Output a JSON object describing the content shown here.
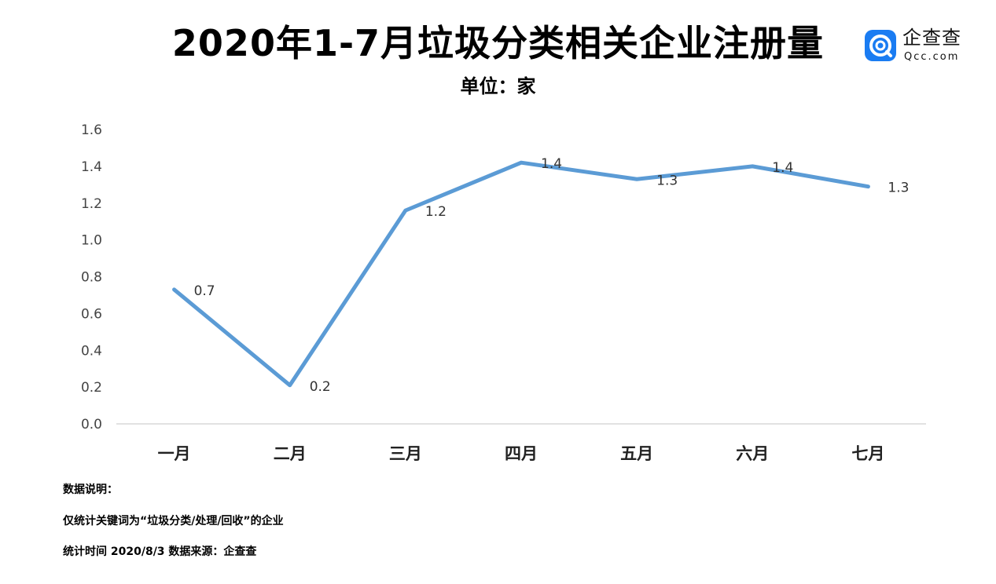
{
  "header": {
    "title": "2020年1-7月垃圾分类相关企业注册量",
    "unit": "单位：家"
  },
  "logo": {
    "name": "企查查",
    "domain": "Qcc.com",
    "brand_color": "#1a7cf2",
    "icon": "qcc-logo-icon"
  },
  "chart_data": {
    "type": "line",
    "title": "2020年1-7月垃圾分类相关企业注册量",
    "subtitle": "单位：家",
    "categories": [
      "一月",
      "二月",
      "三月",
      "四月",
      "五月",
      "六月",
      "七月"
    ],
    "series": [
      {
        "values": [
          0.73,
          0.21,
          1.16,
          1.42,
          1.33,
          1.4,
          1.29
        ],
        "data_labels": [
          "0.7",
          "0.2",
          "1.2",
          "1.4",
          "1.3",
          "1.4",
          "1.3"
        ],
        "color": "#5b9bd5"
      }
    ],
    "ylim": [
      0,
      1.6
    ],
    "yticks": [
      "0.0",
      "0.2",
      "0.4",
      "0.6",
      "0.8",
      "1.0",
      "1.2",
      "1.4",
      "1.6"
    ],
    "grid": false,
    "legend": "none"
  },
  "notes": {
    "heading": "数据说明：",
    "line1": "仅统计关键词为“垃圾分类/处理/回收”的企业",
    "line2": "统计时间 2020/8/3   数据来源：企查查"
  }
}
